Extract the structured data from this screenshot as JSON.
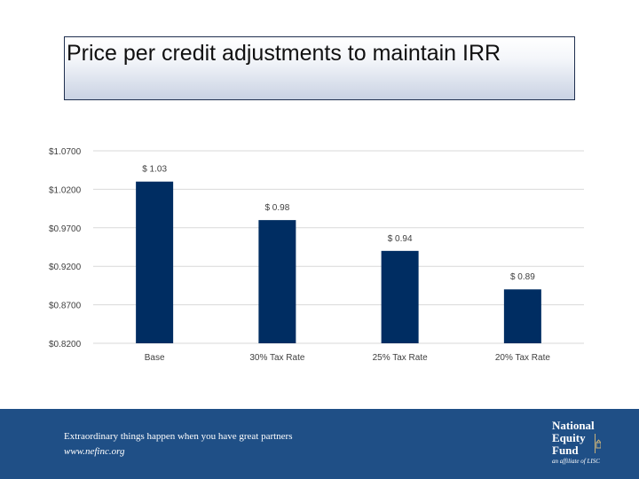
{
  "header": {
    "title": "Price per credit adjustments to maintain IRR"
  },
  "chart_data": {
    "type": "bar",
    "categories": [
      "Base",
      "30% Tax Rate",
      "25% Tax Rate",
      "20% Tax Rate"
    ],
    "values": [
      1.03,
      0.98,
      0.94,
      0.89
    ],
    "data_labels": [
      "$ 1.03",
      "$ 0.98",
      "$ 0.94",
      "$ 0.89"
    ],
    "ylim": [
      0.82,
      1.07
    ],
    "yticks": [
      1.07,
      1.02,
      0.97,
      0.92,
      0.87,
      0.82
    ],
    "ytick_labels": [
      "$1.0700",
      "$1.0200",
      "$0.9700",
      "$0.9200",
      "$0.8700",
      "$0.8200"
    ],
    "grid": true,
    "bar_color": "#002d62"
  },
  "footer": {
    "tagline": "Extraordinary things happen when you have great partners",
    "website": "www.nefinc.org",
    "logo_lines": [
      "National",
      "Equity",
      "Fund"
    ],
    "logo_sub": "an affiliate of LISC",
    "background": "#1f4f86"
  }
}
